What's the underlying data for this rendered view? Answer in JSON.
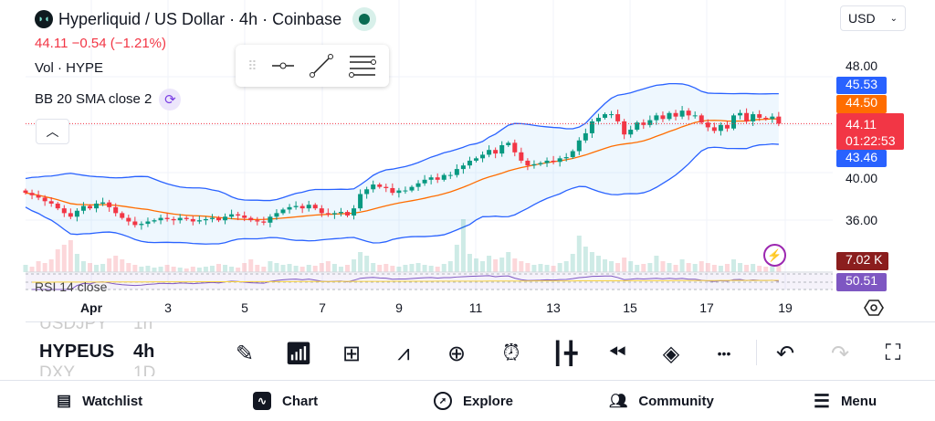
{
  "header": {
    "title": "Hyperliquid / US Dollar · 4h · Coinbase",
    "change": "44.11  −0.54 (−1.21%)",
    "currency": "USD"
  },
  "legend": {
    "volume": "Vol · HYPE",
    "bb": "BB 20 SMA close 2",
    "rsi": "RSI 14 close"
  },
  "price_axis": {
    "ticks": [
      "48.00",
      "40.00",
      "36.00"
    ],
    "tags": {
      "bb_upper": "45.53",
      "bb_basis": "44.50",
      "last": "44.11",
      "countdown": "01:22:53",
      "bb_lower": "43.46",
      "volume": "7.02 K",
      "rsi": "50.51"
    }
  },
  "time_axis": [
    "Apr",
    "3",
    "5",
    "7",
    "9",
    "11",
    "13",
    "15",
    "17",
    "19"
  ],
  "watchlist_picker": {
    "prev_symbol": "USDJPY",
    "prev_interval": "1h",
    "symbol": "HYPEUS",
    "interval": "4h",
    "next_symbol": "DXY",
    "next_interval": "1D"
  },
  "toolbar": [
    "pencil-icon",
    "indicators-icon",
    "layout-grid-icon",
    "compare-icon",
    "add-icon",
    "alert-icon",
    "candle-type-icon",
    "replay-icon",
    "layers-icon",
    "more-icon",
    "undo-icon",
    "redo-icon",
    "fullscreen-icon"
  ],
  "bottom_nav": [
    {
      "label": "Watchlist",
      "icon": "watchlist-icon"
    },
    {
      "label": "Chart",
      "icon": "chart-icon"
    },
    {
      "label": "Explore",
      "icon": "explore-icon"
    },
    {
      "label": "Community",
      "icon": "community-icon"
    },
    {
      "label": "Menu",
      "icon": "menu-icon"
    }
  ],
  "colors": {
    "up": "#089981",
    "down": "#f23645",
    "bb": "#2962ff",
    "basis": "#ff6d00",
    "rsi": "#7e57c2"
  },
  "chart_data": {
    "type": "candlestick",
    "interval": "4h",
    "ylim": [
      34.5,
      49
    ],
    "closes": [
      38.3,
      38.1,
      37.9,
      37.6,
      37.4,
      37.0,
      36.6,
      36.3,
      36.8,
      37.2,
      37.0,
      37.4,
      37.5,
      37.1,
      36.6,
      36.2,
      35.9,
      35.6,
      35.7,
      35.9,
      36.0,
      36.2,
      36.1,
      36.0,
      36.2,
      36.1,
      35.9,
      36.0,
      36.1,
      36.2,
      36.0,
      36.3,
      36.5,
      36.4,
      36.2,
      36.0,
      35.9,
      35.8,
      36.3,
      36.6,
      36.9,
      37.1,
      37.2,
      37.0,
      37.3,
      37.0,
      36.6,
      36.5,
      36.6,
      36.7,
      36.4,
      37.0,
      38.2,
      38.6,
      39.0,
      38.8,
      38.7,
      38.3,
      38.5,
      38.5,
      38.8,
      39.1,
      39.4,
      39.6,
      39.4,
      39.8,
      39.8,
      40.3,
      40.6,
      41.0,
      41.2,
      41.5,
      41.9,
      41.6,
      42.3,
      42.5,
      41.7,
      41.0,
      40.6,
      40.7,
      40.8,
      41.0,
      40.9,
      41.2,
      41.3,
      41.8,
      42.7,
      43.3,
      44.3,
      44.6,
      44.9,
      44.9,
      44.3,
      43.2,
      43.6,
      44.2,
      44.0,
      44.4,
      44.8,
      44.5,
      45.0,
      44.7,
      45.2,
      44.8,
      44.8,
      44.2,
      43.8,
      43.5,
      44.0,
      43.7,
      44.8,
      45.0,
      44.3,
      44.9,
      44.6,
      44.5,
      44.7,
      44.11
    ],
    "volumes_k": [
      8,
      6,
      12,
      10,
      14,
      25,
      30,
      35,
      20,
      12,
      10,
      8,
      9,
      15,
      18,
      14,
      10,
      8,
      6,
      7,
      5,
      6,
      8,
      6,
      5,
      4,
      6,
      5,
      6,
      7,
      9,
      8,
      6,
      5,
      10,
      14,
      8,
      6,
      12,
      10,
      8,
      9,
      7,
      6,
      8,
      7,
      10,
      12,
      9,
      6,
      8,
      14,
      22,
      18,
      10,
      8,
      9,
      7,
      6,
      8,
      9,
      10,
      8,
      7,
      6,
      9,
      12,
      30,
      58,
      20,
      15,
      12,
      18,
      14,
      16,
      22,
      15,
      12,
      10,
      8,
      9,
      8,
      7,
      10,
      12,
      20,
      40,
      28,
      22,
      18,
      14,
      12,
      10,
      16,
      12,
      8,
      9,
      10,
      18,
      12,
      10,
      8,
      14,
      10,
      9,
      12,
      10,
      8,
      7,
      9,
      14,
      10,
      8,
      9,
      7,
      6,
      8,
      7
    ]
  }
}
